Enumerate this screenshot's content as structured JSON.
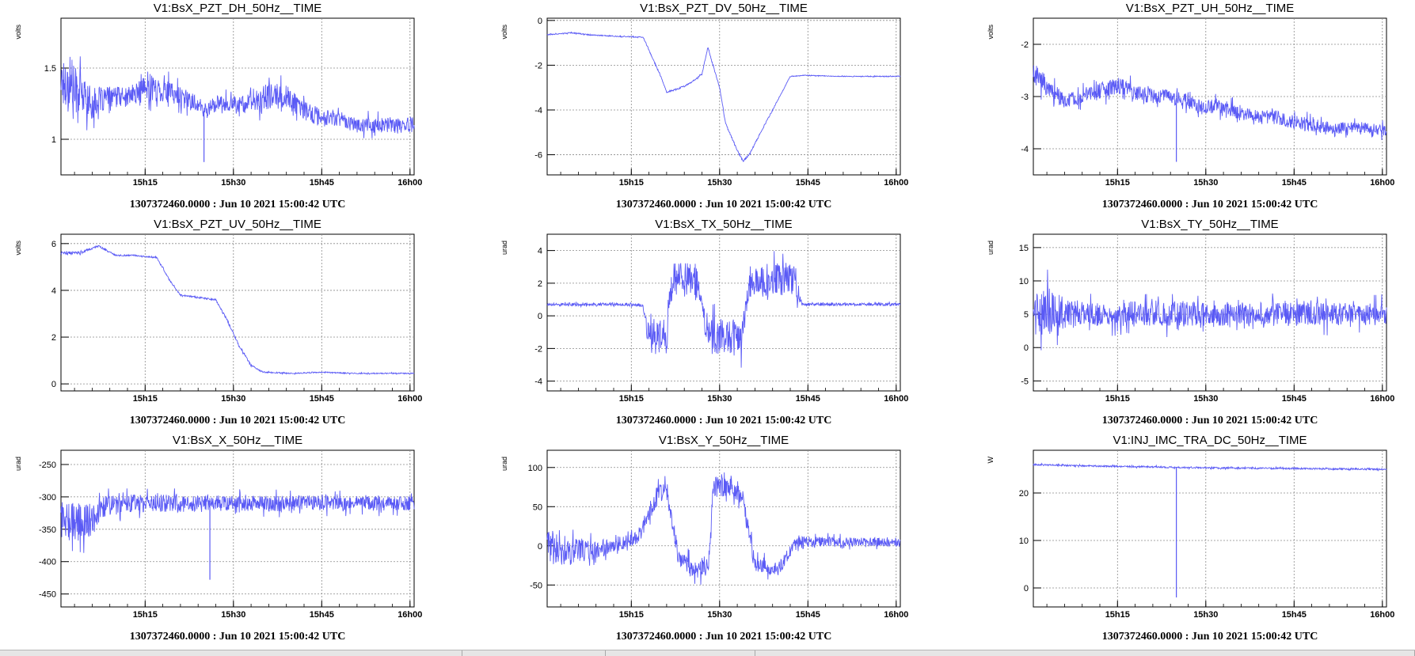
{
  "colors": {
    "trace": "#5a5af5",
    "grid": "#8a8a8a",
    "axis": "#000000"
  },
  "x_tick_labels": [
    "15h15",
    "15h30",
    "15h45",
    "16h00"
  ],
  "chart_data": [
    {
      "type": "line",
      "title": "V1:BsX_PZT_DH_50Hz__TIME",
      "ylabel": "volts",
      "xlabel": "1307372460.0000 : Jun 10 2021 15:00:42 UTC",
      "xlim": [
        "15:00:42",
        "16:00:42"
      ],
      "ylim": [
        0.75,
        1.85
      ],
      "y_ticks": [
        1,
        1.5
      ],
      "y_tick_labels": [
        "1",
        "1.5"
      ],
      "grid": true,
      "series": [
        {
          "x": [
            "15:00",
            "15:03",
            "15:06",
            "15:09",
            "15:12",
            "15:15",
            "15:18",
            "15:21",
            "15:24",
            "15:25",
            "15:27",
            "15:30",
            "15:33",
            "15:36",
            "15:39",
            "15:42",
            "15:45",
            "15:48",
            "15:51",
            "15:54",
            "15:57",
            "16:00"
          ],
          "mean": [
            1.45,
            1.35,
            1.25,
            1.3,
            1.3,
            1.35,
            1.35,
            1.3,
            1.25,
            1.2,
            1.25,
            1.25,
            1.25,
            1.3,
            1.3,
            1.2,
            1.15,
            1.15,
            1.1,
            1.1,
            1.1,
            1.1
          ],
          "spread": [
            0.28,
            0.3,
            0.2,
            0.13,
            0.12,
            0.16,
            0.16,
            0.13,
            0.1,
            0.1,
            0.1,
            0.1,
            0.12,
            0.18,
            0.15,
            0.12,
            0.12,
            0.1,
            0.1,
            0.1,
            0.1,
            0.1
          ],
          "spikes": [
            {
              "x": "15:25",
              "y": 0.84
            }
          ]
        }
      ]
    },
    {
      "type": "line",
      "title": "V1:BsX_PZT_DV_50Hz__TIME",
      "ylabel": "volts",
      "xlabel": "1307372460.0000 : Jun 10 2021 15:00:42 UTC",
      "xlim": [
        "15:00:42",
        "16:00:42"
      ],
      "ylim": [
        -6.9,
        0.1
      ],
      "y_ticks": [
        0,
        -2,
        -4,
        -6
      ],
      "y_tick_labels": [
        "0",
        "-2",
        "-4",
        "-6"
      ],
      "grid": true,
      "series": [
        {
          "x": [
            "15:00",
            "15:05",
            "15:08",
            "15:12",
            "15:17",
            "15:20",
            "15:21",
            "15:23",
            "15:25",
            "15:27",
            "15:28",
            "15:30",
            "15:31",
            "15:33",
            "15:34",
            "15:35",
            "15:37",
            "15:39",
            "15:42",
            "15:45",
            "15:50",
            "15:55",
            "16:00"
          ],
          "mean": [
            -0.65,
            -0.55,
            -0.65,
            -0.7,
            -0.75,
            -2.5,
            -3.2,
            -3.05,
            -2.8,
            -2.4,
            -1.2,
            -3.0,
            -4.6,
            -5.8,
            -6.3,
            -6.0,
            -5.0,
            -4.0,
            -2.5,
            -2.45,
            -2.5,
            -2.5,
            -2.5
          ],
          "spread": [
            0.04,
            0.04,
            0.04,
            0.04,
            0.04,
            0.06,
            0.06,
            0.06,
            0.06,
            0.06,
            0.06,
            0.08,
            0.08,
            0.08,
            0.08,
            0.08,
            0.06,
            0.06,
            0.03,
            0.03,
            0.03,
            0.03,
            0.03
          ],
          "spikes": []
        }
      ]
    },
    {
      "type": "line",
      "title": "V1:BsX_PZT_UH_50Hz__TIME",
      "ylabel": "volts",
      "xlabel": "1307372460.0000 : Jun 10 2021 15:00:42 UTC",
      "xlim": [
        "15:00:42",
        "16:00:42"
      ],
      "ylim": [
        -4.5,
        -1.5
      ],
      "y_ticks": [
        -2,
        -3,
        -4
      ],
      "y_tick_labels": [
        "-2",
        "-3",
        "-4"
      ],
      "grid": true,
      "series": [
        {
          "x": [
            "15:00",
            "15:03",
            "15:06",
            "15:09",
            "15:12",
            "15:15",
            "15:18",
            "15:21",
            "15:24",
            "15:27",
            "15:30",
            "15:33",
            "15:36",
            "15:39",
            "15:42",
            "15:45",
            "15:48",
            "15:51",
            "15:54",
            "15:57",
            "16:00"
          ],
          "mean": [
            -2.5,
            -2.8,
            -3.1,
            -3.0,
            -2.9,
            -2.8,
            -2.9,
            -3.0,
            -3.0,
            -3.1,
            -3.2,
            -3.2,
            -3.3,
            -3.4,
            -3.4,
            -3.5,
            -3.55,
            -3.6,
            -3.6,
            -3.6,
            -3.65
          ],
          "spread": [
            0.45,
            0.35,
            0.25,
            0.25,
            0.3,
            0.3,
            0.3,
            0.25,
            0.25,
            0.25,
            0.25,
            0.25,
            0.25,
            0.25,
            0.25,
            0.25,
            0.25,
            0.2,
            0.2,
            0.2,
            0.2
          ],
          "spikes": [
            {
              "x": "15:25",
              "y": -4.25
            }
          ]
        }
      ]
    },
    {
      "type": "line",
      "title": "V1:BsX_PZT_UV_50Hz__TIME",
      "ylabel": "volts",
      "xlabel": "1307372460.0000 : Jun 10 2021 15:00:42 UTC",
      "xlim": [
        "15:00:42",
        "16:00:42"
      ],
      "ylim": [
        -0.3,
        6.4
      ],
      "y_ticks": [
        0,
        2,
        4,
        6
      ],
      "y_tick_labels": [
        "0",
        "2",
        "4",
        "6"
      ],
      "grid": true,
      "series": [
        {
          "x": [
            "15:00",
            "15:04",
            "15:07",
            "15:10",
            "15:13",
            "15:17",
            "15:19",
            "15:21",
            "15:24",
            "15:27",
            "15:29",
            "15:31",
            "15:33",
            "15:35",
            "15:40",
            "15:45",
            "15:50",
            "15:55",
            "16:00"
          ],
          "mean": [
            5.6,
            5.6,
            5.9,
            5.5,
            5.5,
            5.4,
            4.5,
            3.8,
            3.7,
            3.6,
            2.7,
            1.6,
            0.8,
            0.5,
            0.45,
            0.5,
            0.45,
            0.45,
            0.45
          ],
          "spread": [
            0.1,
            0.1,
            0.08,
            0.05,
            0.05,
            0.05,
            0.08,
            0.06,
            0.06,
            0.06,
            0.08,
            0.08,
            0.06,
            0.05,
            0.04,
            0.04,
            0.04,
            0.04,
            0.04
          ],
          "spikes": []
        }
      ]
    },
    {
      "type": "line",
      "title": "V1:BsX_TX_50Hz__TIME",
      "ylabel": "urad",
      "xlabel": "1307372460.0000 : Jun 10 2021 15:00:42 UTC",
      "xlim": [
        "15:00:42",
        "16:00:42"
      ],
      "ylim": [
        -4.6,
        5.0
      ],
      "y_ticks": [
        4,
        2,
        0,
        -2,
        -4
      ],
      "y_tick_labels": [
        "4",
        "2",
        "0",
        "-2",
        "-4"
      ],
      "grid": true,
      "series": [
        {
          "x": [
            "15:00",
            "15:05",
            "15:10",
            "15:15",
            "15:17",
            "15:18",
            "15:21",
            "15:22",
            "15:26",
            "15:27",
            "15:28",
            "15:34",
            "15:35",
            "15:43",
            "15:44",
            "15:50",
            "15:55",
            "16:00"
          ],
          "mean": [
            0.7,
            0.7,
            0.7,
            0.7,
            0.6,
            -1.3,
            -1.3,
            2.2,
            2.2,
            0.7,
            -1.3,
            -1.3,
            2.2,
            2.2,
            0.7,
            0.7,
            0.7,
            0.7
          ],
          "spread": [
            0.15,
            0.15,
            0.15,
            0.15,
            0.15,
            2.0,
            2.0,
            1.9,
            1.9,
            0.2,
            2.1,
            2.1,
            1.9,
            1.9,
            0.15,
            0.15,
            0.15,
            0.15
          ],
          "spikes": []
        }
      ]
    },
    {
      "type": "line",
      "title": "V1:BsX_TY_50Hz__TIME",
      "ylabel": "urad",
      "xlabel": "1307372460.0000 : Jun 10 2021 15:00:42 UTC",
      "xlim": [
        "15:00:42",
        "16:00:42"
      ],
      "ylim": [
        -6.5,
        17
      ],
      "y_ticks": [
        15,
        10,
        5,
        0,
        -5
      ],
      "y_tick_labels": [
        "15",
        "10",
        "5",
        "0",
        "-5"
      ],
      "grid": true,
      "series": [
        {
          "x": [
            "15:00",
            "15:03",
            "15:06",
            "15:09",
            "15:15",
            "15:20",
            "15:25",
            "15:30",
            "15:35",
            "15:40",
            "15:45",
            "15:50",
            "15:55",
            "16:00"
          ],
          "mean": [
            5,
            5.5,
            5,
            5,
            5,
            5,
            5,
            5,
            5,
            5,
            5,
            5,
            5,
            5
          ],
          "spread": [
            6,
            7,
            4.5,
            3.5,
            3.5,
            3.5,
            3.5,
            3.2,
            3.2,
            3.2,
            3.2,
            3.2,
            3.0,
            3.0
          ],
          "spikes": []
        }
      ]
    },
    {
      "type": "line",
      "title": "V1:BsX_X_50Hz__TIME",
      "ylabel": "urad",
      "xlabel": "1307372460.0000 : Jun 10 2021 15:00:42 UTC",
      "xlim": [
        "15:00:42",
        "16:00:42"
      ],
      "ylim": [
        -470,
        -228
      ],
      "y_ticks": [
        -250,
        -300,
        -350,
        -400,
        -450
      ],
      "y_tick_labels": [
        "-250",
        "-300",
        "-350",
        "-400",
        "-450"
      ],
      "grid": true,
      "series": [
        {
          "x": [
            "15:00",
            "15:03",
            "15:06",
            "15:08",
            "15:12",
            "15:15",
            "15:20",
            "15:25",
            "15:30",
            "15:35",
            "15:40",
            "15:45",
            "15:50",
            "15:55",
            "16:00"
          ],
          "mean": [
            -330,
            -340,
            -335,
            -315,
            -310,
            -310,
            -310,
            -310,
            -310,
            -310,
            -310,
            -310,
            -310,
            -310,
            -310
          ],
          "spread": [
            45,
            55,
            45,
            30,
            25,
            25,
            25,
            22,
            22,
            22,
            22,
            22,
            20,
            20,
            20
          ],
          "spikes": [
            {
              "x": "15:26",
              "y": -428
            }
          ]
        }
      ]
    },
    {
      "type": "line",
      "title": "V1:BsX_Y_50Hz__TIME",
      "ylabel": "urad",
      "xlabel": "1307372460.0000 : Jun 10 2021 15:00:42 UTC",
      "xlim": [
        "15:00:42",
        "16:00:42"
      ],
      "ylim": [
        -78,
        122
      ],
      "y_ticks": [
        100,
        50,
        0,
        -50
      ],
      "y_tick_labels": [
        "100",
        "50",
        "0",
        "-50"
      ],
      "grid": true,
      "series": [
        {
          "x": [
            "15:00",
            "15:04",
            "15:08",
            "15:12",
            "15:16",
            "15:19",
            "15:21",
            "15:23",
            "15:26",
            "15:28",
            "15:29",
            "15:32",
            "15:34",
            "15:36",
            "15:40",
            "15:43",
            "15:47",
            "15:52",
            "15:56",
            "16:00"
          ],
          "mean": [
            0,
            -10,
            -5,
            0,
            10,
            60,
            75,
            -15,
            -30,
            -25,
            75,
            75,
            60,
            -25,
            -30,
            5,
            5,
            5,
            5,
            5
          ],
          "spread": [
            40,
            35,
            25,
            15,
            15,
            25,
            20,
            20,
            20,
            25,
            25,
            20,
            20,
            20,
            15,
            12,
            12,
            10,
            10,
            10
          ],
          "spikes": []
        }
      ]
    },
    {
      "type": "line",
      "title": "V1:INJ_IMC_TRA_DC_50Hz__TIME",
      "ylabel": "W",
      "xlabel": "1307372460.0000 : Jun 10 2021 15:00:42 UTC",
      "xlim": [
        "15:00:42",
        "16:00:42"
      ],
      "ylim": [
        -4,
        29
      ],
      "y_ticks": [
        20,
        10,
        0
      ],
      "y_tick_labels": [
        "20",
        "10",
        "0"
      ],
      "grid": true,
      "series": [
        {
          "x": [
            "15:00",
            "15:10",
            "15:20",
            "15:30",
            "15:40",
            "15:50",
            "16:00"
          ],
          "mean": [
            26,
            25.7,
            25.5,
            25.3,
            25.2,
            25.1,
            25.0
          ],
          "spread": [
            0.3,
            0.3,
            0.3,
            0.3,
            0.3,
            0.3,
            0.3
          ],
          "spikes": [
            {
              "x": "15:25",
              "y": -2
            }
          ]
        }
      ]
    }
  ]
}
